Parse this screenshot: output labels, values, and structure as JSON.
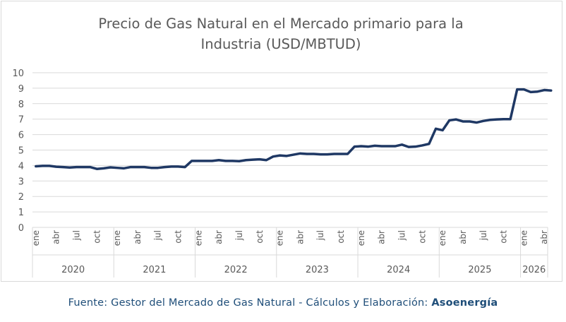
{
  "chart_data": {
    "type": "line",
    "title_lines": [
      "Precio de Gas Natural en el Mercado primario para la",
      "Industria (USD/MBTUD)"
    ],
    "ylim": [
      0,
      10
    ],
    "yticks": [
      0,
      1,
      2,
      3,
      4,
      5,
      6,
      7,
      8,
      9,
      10
    ],
    "grid": true,
    "legend": "none",
    "line_color": "#1f3864",
    "x_month_labels": [
      "ene",
      "abr",
      "jul",
      "oct"
    ],
    "years": [
      "2020",
      "2021",
      "2022",
      "2023",
      "2024",
      "2025",
      "2026"
    ],
    "x_start": "2020-01",
    "x_end": "2026-04",
    "series": [
      {
        "values": [
          3.95,
          3.98,
          3.98,
          3.92,
          3.9,
          3.87,
          3.9,
          3.9,
          3.9,
          3.78,
          3.82,
          3.88,
          3.85,
          3.82,
          3.9,
          3.9,
          3.9,
          3.85,
          3.85,
          3.9,
          3.93,
          3.93,
          3.9,
          4.3,
          4.3,
          4.3,
          4.3,
          4.35,
          4.3,
          4.3,
          4.28,
          4.35,
          4.38,
          4.4,
          4.35,
          4.58,
          4.65,
          4.62,
          4.7,
          4.78,
          4.75,
          4.75,
          4.72,
          4.72,
          4.75,
          4.75,
          4.75,
          5.22,
          5.25,
          5.22,
          5.28,
          5.25,
          5.25,
          5.25,
          5.35,
          5.2,
          5.22,
          5.3,
          5.4,
          6.38,
          6.28,
          6.92,
          6.98,
          6.85,
          6.85,
          6.78,
          6.88,
          6.95,
          6.98,
          7.0,
          7.0,
          8.92,
          8.92,
          8.75,
          8.78,
          8.88,
          8.85
        ]
      }
    ]
  },
  "source": {
    "prefix": "Fuente: Gestor del Mercado de Gas Natural - Cálculos y Elaboración: ",
    "brand": "Asoenergía"
  }
}
